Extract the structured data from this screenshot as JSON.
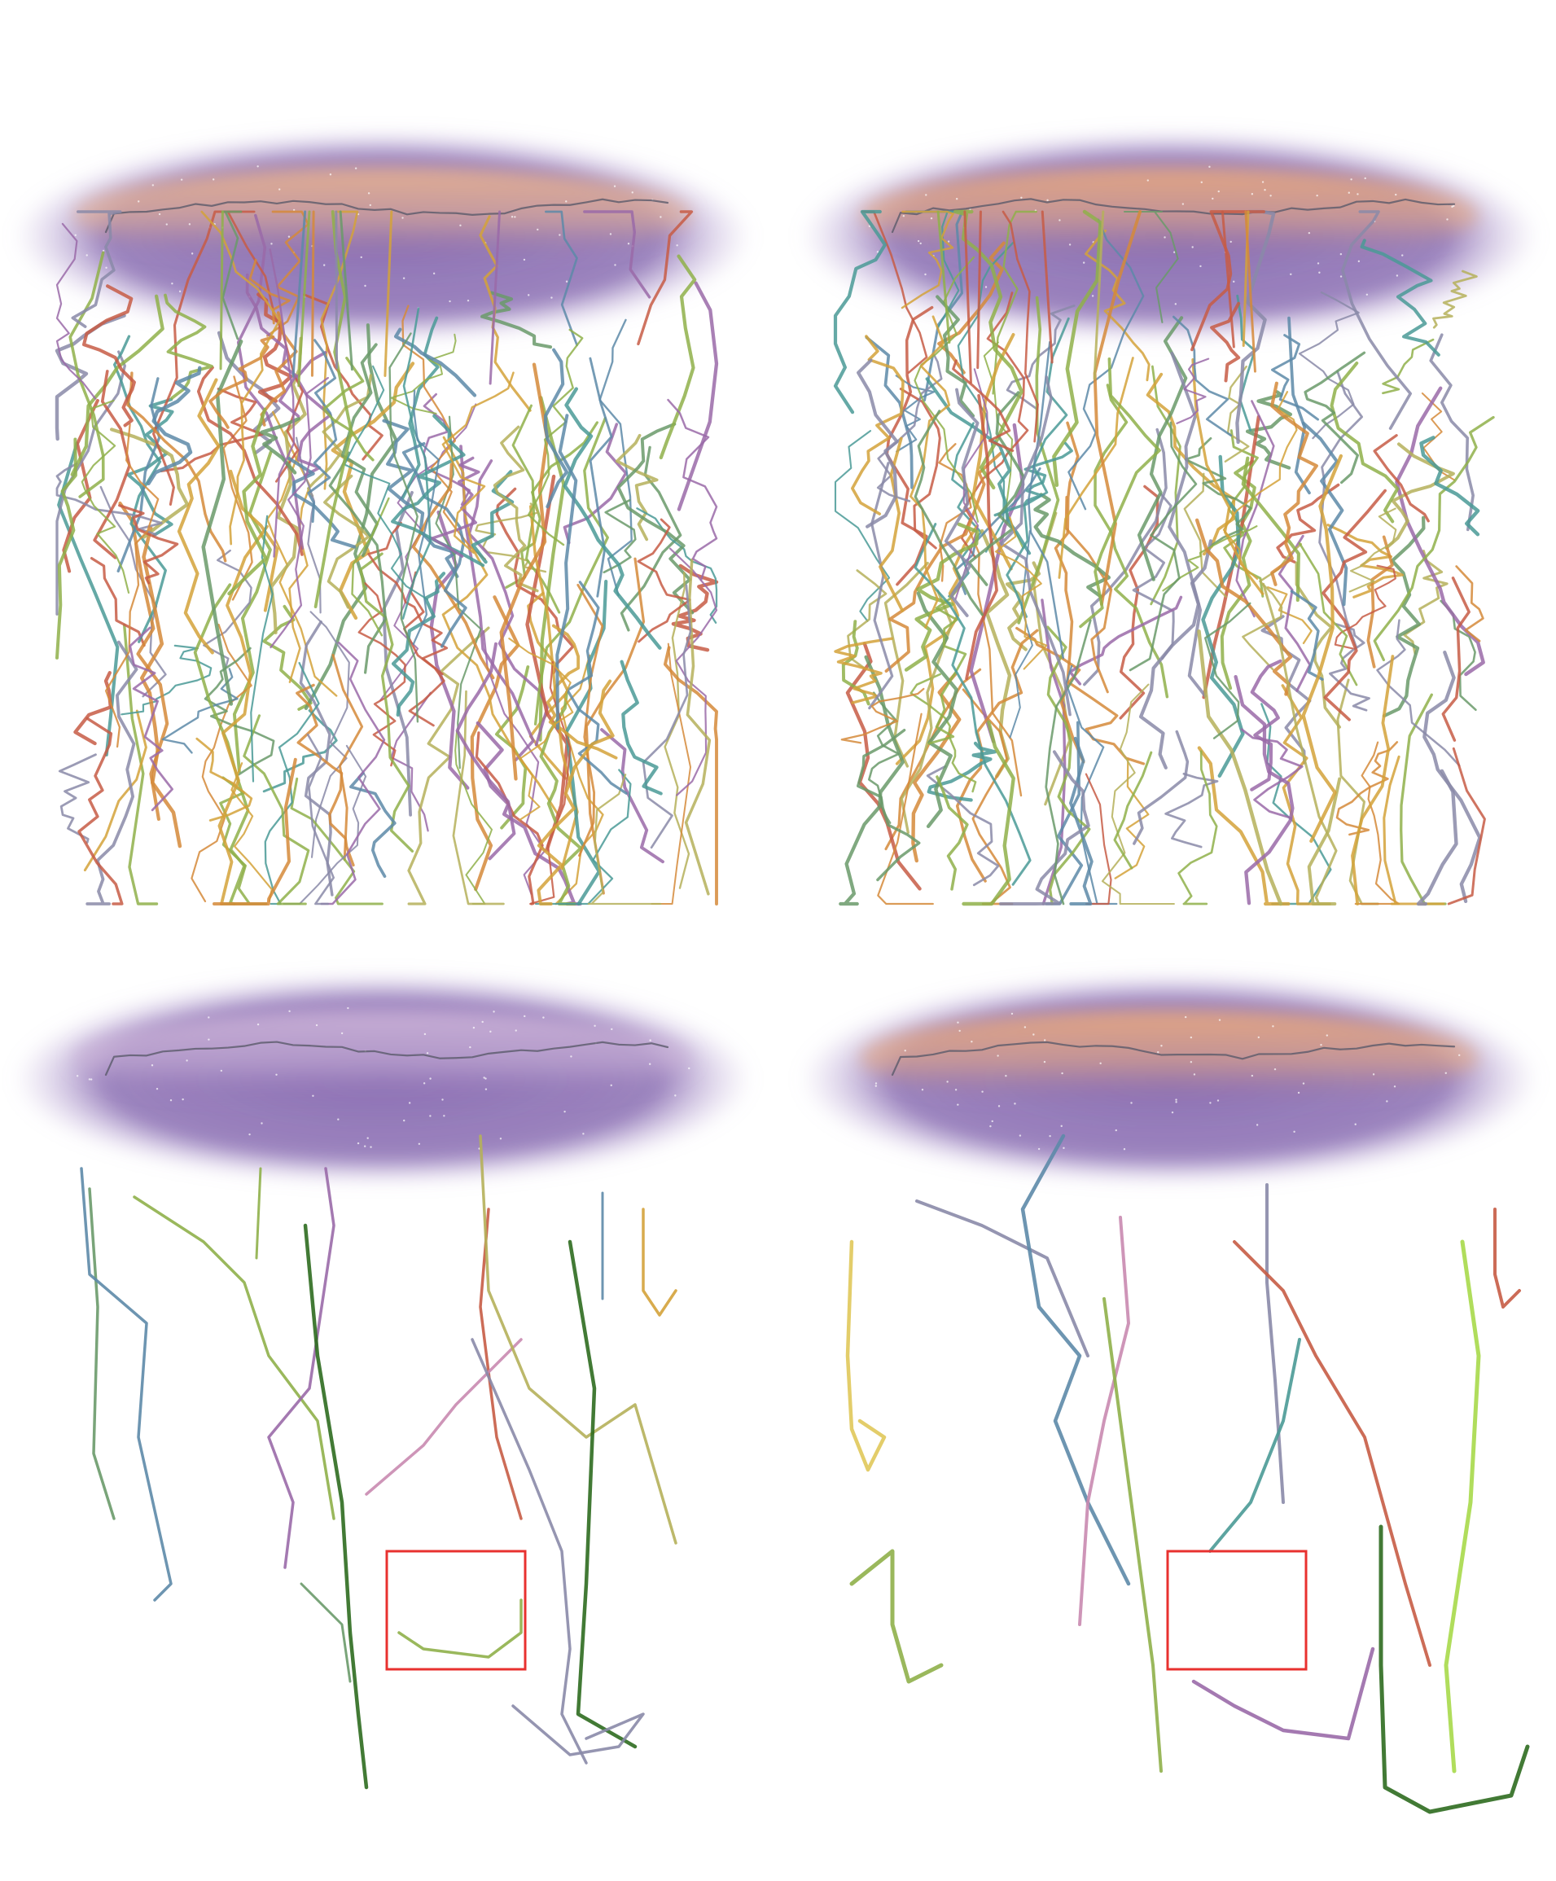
{
  "figure": {
    "panels": [
      {
        "name": "panel-top-left",
        "density": "dense",
        "layer_tint": "#e6b08f"
      },
      {
        "name": "panel-top-right",
        "density": "dense",
        "layer_tint": "#e6a77f"
      },
      {
        "name": "panel-bottom-left",
        "density": "sparse",
        "layer_tint": "#c9b0d6"
      },
      {
        "name": "panel-bottom-right",
        "density": "sparse",
        "layer_tint": "#e6a77f"
      }
    ],
    "colors": {
      "halo": "#7a5aa8",
      "halo_light": "#b9a3d6",
      "highlight_box": "#e8312f",
      "trace_palette": [
        "#6a9a6a",
        "#c75c45",
        "#d4a23a",
        "#5d8aa8",
        "#8fb04a",
        "#9a6aa8",
        "#4a9a96",
        "#d58a3a",
        "#b5b05a",
        "#8a8aa8",
        "#2e6b1f",
        "#c98ab0",
        "#a7d94a",
        "#e0c85a"
      ]
    }
  }
}
